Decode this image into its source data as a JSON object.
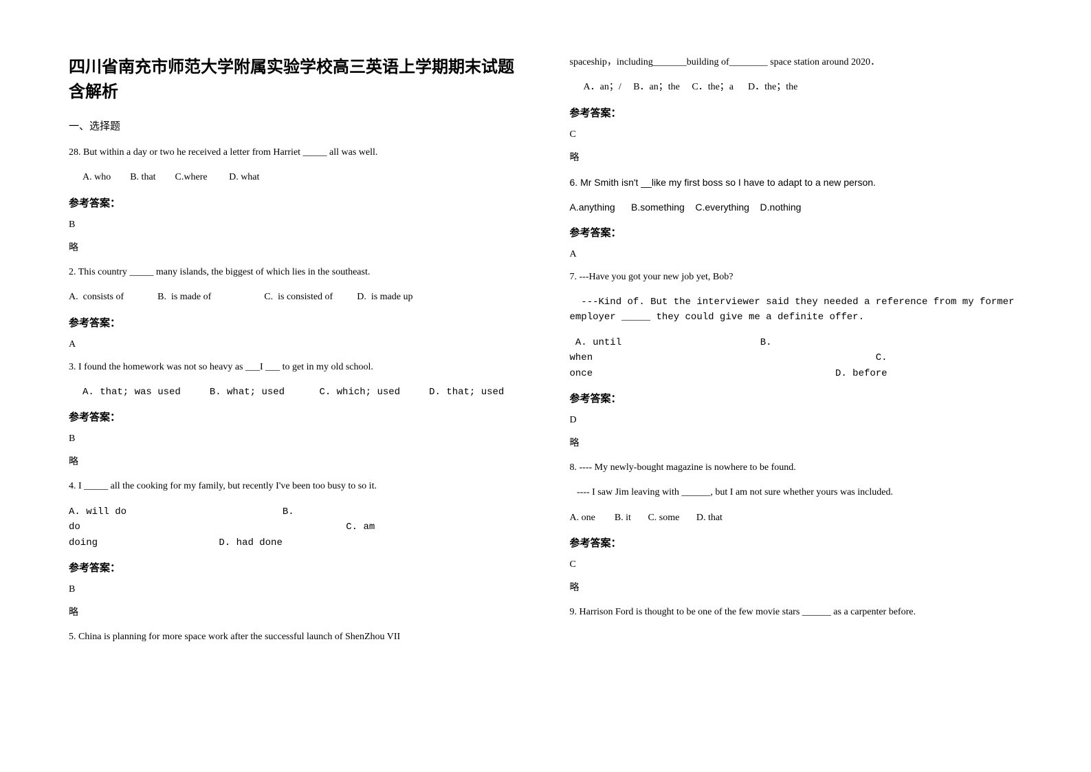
{
  "title": "四川省南充市师范大学附属实验学校高三英语上学期期末试题含解析",
  "section_header": "一、选择题",
  "answer_label": "参考答案：",
  "note_text": "略",
  "left": {
    "q1": {
      "text": "28. But within a day or two he received a letter from Harriet _____ all was well.",
      "options": "A. who        B. that        C.where         D. what",
      "answer": "B"
    },
    "q2": {
      "text": "2. This country _____ many islands, the biggest of which lies in the southeast.",
      "options": "A.  consists of              B.  is made of                      C.  is consisted of          D.  is made up",
      "answer": "A"
    },
    "q3": {
      "text": "3. I found the homework was not so heavy as ___I ___ to get in my old school.",
      "options": "A. that; was used     B. what; used      C.  which; used     D. that; used",
      "answer": "B"
    },
    "q4": {
      "text": "4. I _____ all the cooking for my family, but recently I've been too busy to so it.",
      "options": "A. will do                           B. do                                              C. am doing                     D. had done",
      "answer": "B"
    },
    "q5": {
      "text": "5. China is planning for more space work after the successful launch of ShenZhou VII"
    }
  },
  "right": {
    "q5cont": {
      "text": "spaceship，including_______building of________ space station around 2020．",
      "options": "A．an；/     B．an；the     C．the；a      D．the；the",
      "answer": "C"
    },
    "q6": {
      "text": "6. Mr Smith isn't __like my first boss so I have to adapt to a new person.",
      "options": "A.anything      B.something    C.everything    D.nothing",
      "answer": "A"
    },
    "q7": {
      "text": "7. ---Have you got your new job yet, Bob?",
      "text2": "  ---Kind of. But the interviewer said they needed a reference from my former employer _____ they could give me a definite offer.",
      "options": " A. until                        B. when                                                 C. once                                          D. before",
      "answer": "D"
    },
    "q8": {
      "text": "8. ---- My newly-bought magazine is nowhere to be found.",
      "text2": "   ---- I saw Jim leaving with ______, but I am not sure whether yours was included.",
      "options": "A. one        B. it       C. some       D. that",
      "answer": "C"
    },
    "q9": {
      "text": "9. Harrison Ford is thought to be one of the few movie stars ______ as a carpenter before."
    }
  }
}
